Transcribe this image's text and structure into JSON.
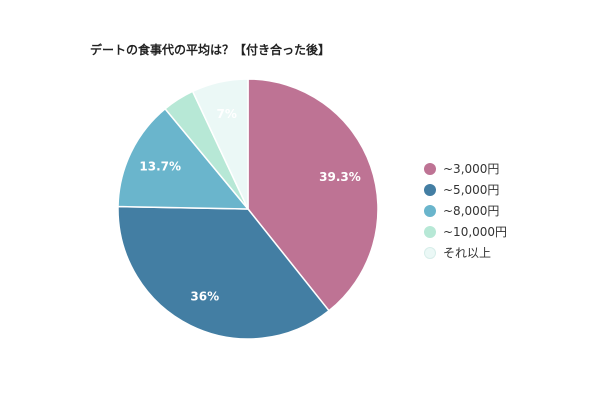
{
  "chart_data": {
    "type": "pie",
    "title": "デートの食事代の平均は？【付き合った後】",
    "categories": [
      "~3,000円",
      "~5,000円",
      "~8,000円",
      "~10,000円",
      "それ以上"
    ],
    "values": [
      39.3,
      36,
      13.7,
      4,
      7
    ],
    "data_labels": [
      "39.3%",
      "36%",
      "13.7%",
      "",
      "7%"
    ],
    "colors": [
      "#be7394",
      "#437ea3",
      "#6ab5cc",
      "#b7e8d6",
      "#ebf8f6"
    ],
    "legend_position": "right"
  }
}
